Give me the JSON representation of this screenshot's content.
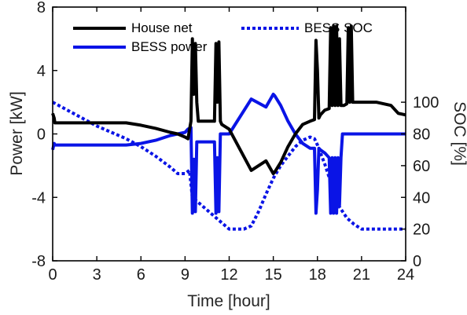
{
  "chart_data": {
    "type": "line",
    "title": "",
    "xlabel": "Time [hour]",
    "ylabel_left": "Power [kW]",
    "ylabel_right": "SOC [%]",
    "xlim": [
      0,
      24
    ],
    "ylim_left": [
      -8,
      8
    ],
    "ylim_right": [
      0,
      160
    ],
    "xticks": [
      0,
      3,
      6,
      9,
      12,
      15,
      18,
      21,
      24
    ],
    "yticks_left": [
      -8,
      -4,
      0,
      4,
      8
    ],
    "yticks_right": [
      0,
      20,
      40,
      60,
      80,
      100
    ],
    "grid": false,
    "legend_placement": "top",
    "colors": {
      "house": "#000000",
      "bess_power": "#0a14e6",
      "soc": "#0a14e6"
    },
    "series": [
      {
        "name": "House net",
        "axis": "left",
        "style": "solid",
        "x": [
          0,
          0.1,
          0.15,
          0.3,
          5,
          6,
          7,
          8,
          8.5,
          9,
          9.2,
          9.4,
          9.5,
          9.6,
          9.7,
          9.8,
          9.9,
          10.5,
          11,
          11.1,
          11.2,
          11.3,
          11.4,
          11.5,
          12,
          13.5,
          14.5,
          15,
          15.1,
          15.5,
          16,
          16.5,
          17,
          17.5,
          17.8,
          17.9,
          18.0,
          18.1,
          18.2,
          18.5,
          18.8,
          18.9,
          19.0,
          19.1,
          19.2,
          19.3,
          19.4,
          19.5,
          19.6,
          19.7,
          19.8,
          20,
          20.1,
          20.2,
          20.3,
          20.4,
          20.5,
          21,
          22,
          23,
          23.5,
          24
        ],
        "y": [
          1.3,
          1.0,
          0.7,
          0.7,
          0.7,
          0.55,
          0.35,
          0.1,
          0.0,
          -0.2,
          -0.3,
          0.8,
          6.0,
          2.5,
          5.7,
          2.0,
          0.8,
          0.8,
          0.8,
          5.7,
          2.0,
          5.8,
          0.8,
          0.6,
          0.3,
          -2.3,
          -1.7,
          -2.5,
          -2.4,
          -1.8,
          -0.8,
          0.0,
          0.6,
          0.8,
          0.9,
          5.9,
          4.0,
          1.0,
          1.2,
          1.5,
          1.6,
          6.7,
          1.8,
          6.8,
          1.8,
          6.8,
          1.8,
          6.0,
          1.8,
          1.8,
          1.8,
          1.9,
          6.7,
          2.0,
          6.8,
          2.0,
          2.0,
          2.0,
          2.0,
          1.8,
          1.3,
          1.2
        ]
      },
      {
        "name": "BESS power",
        "axis": "left",
        "style": "solid",
        "x": [
          0,
          0.1,
          0.15,
          0.3,
          5,
          6,
          7,
          8,
          9,
          9.2,
          9.4,
          9.5,
          9.6,
          9.7,
          9.8,
          9.9,
          10.5,
          11,
          11.1,
          11.2,
          11.3,
          11.4,
          11.5,
          12,
          13.5,
          14.5,
          15,
          15.1,
          15.5,
          16,
          16.5,
          17,
          17.5,
          17.8,
          17.9,
          18.0,
          18.1,
          18.2,
          18.5,
          18.8,
          18.9,
          19.0,
          19.1,
          19.2,
          19.3,
          19.4,
          19.5,
          19.6,
          19.7,
          19.8,
          20,
          21,
          22,
          23,
          24
        ],
        "y": [
          -1.0,
          -0.6,
          -0.7,
          -0.7,
          -0.7,
          -0.6,
          -0.4,
          -0.1,
          0.1,
          0.3,
          0.4,
          -5.0,
          -1.6,
          -4.9,
          -0.5,
          -0.5,
          -0.5,
          -0.5,
          -5.0,
          -1.5,
          -4.9,
          0.0,
          0.0,
          0.0,
          2.2,
          1.7,
          2.5,
          2.4,
          1.8,
          0.8,
          0.0,
          -0.6,
          -0.9,
          -0.9,
          -5.0,
          -3.5,
          -0.9,
          -1.0,
          -1.2,
          -1.5,
          -5.0,
          -1.5,
          -5.0,
          -1.5,
          -5.0,
          -1.5,
          -4.5,
          -1.5,
          0.0,
          0.0,
          0.0,
          0.0,
          0.0,
          0.0,
          0.0
        ]
      },
      {
        "name": "BESS SOC",
        "axis": "right",
        "style": "dotted",
        "x": [
          0,
          1,
          2,
          3,
          4,
          5,
          6,
          7,
          8,
          8.5,
          9,
          9.3,
          9.5,
          10,
          10.5,
          11,
          11.5,
          12,
          12.5,
          13,
          13.5,
          14,
          14.5,
          15,
          15.5,
          16,
          16.5,
          17,
          17.5,
          17.8,
          18,
          18.5,
          19,
          19.5,
          20,
          20.5,
          21,
          22,
          23,
          24
        ],
        "y": [
          100,
          95,
          90,
          85,
          81,
          77,
          72,
          66,
          59,
          55,
          55,
          57,
          40,
          36,
          32,
          28,
          24,
          20,
          20,
          20,
          22,
          31,
          42,
          52,
          60,
          66,
          72,
          76,
          78,
          77,
          73,
          61,
          47,
          34,
          27,
          23,
          20,
          20,
          20,
          20
        ]
      }
    ]
  }
}
